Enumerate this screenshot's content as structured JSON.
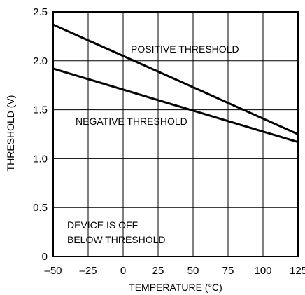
{
  "chart_data": {
    "type": "line",
    "xlabel": "TEMPERATURE (°C)",
    "ylabel": "THRESHOLD (V)",
    "xlim": [
      -50,
      125
    ],
    "ylim": [
      0,
      2.5
    ],
    "x_ticks": [
      "–50",
      "–25",
      "0",
      "25",
      "50",
      "75",
      "100",
      "125"
    ],
    "x_tick_values": [
      -50,
      -25,
      0,
      25,
      50,
      75,
      100,
      125
    ],
    "y_ticks": [
      "0",
      "0.5",
      "1.0",
      "1.5",
      "2.0",
      "2.5"
    ],
    "y_tick_values": [
      0,
      0.5,
      1.0,
      1.5,
      2.0,
      2.5
    ],
    "grid": true,
    "series": [
      {
        "x": [
          -50,
          125
        ],
        "y": [
          2.37,
          1.25
        ]
      },
      {
        "x": [
          -50,
          125
        ],
        "y": [
          1.92,
          1.17
        ]
      }
    ],
    "annotations": {
      "positive": "POSITIVE THRESHOLD",
      "negative": "NEGATIVE THRESHOLD",
      "device_line1": "DEVICE IS OFF",
      "device_line2": "BELOW THRESHOLD"
    }
  }
}
